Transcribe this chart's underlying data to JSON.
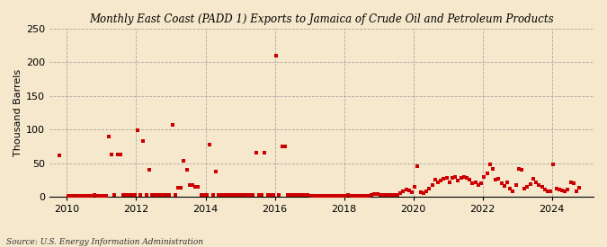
{
  "title": "Monthly East Coast (PADD 1) Exports to Jamaica of Crude Oil and Petroleum Products",
  "ylabel": "Thousand Barrels",
  "source": "Source: U.S. Energy Information Administration",
  "background_color": "#f5e8cc",
  "plot_bg_color": "#f5e8cc",
  "marker_color": "#cc0000",
  "marker_size": 5,
  "ylim": [
    0,
    250
  ],
  "yticks": [
    0,
    50,
    100,
    150,
    200,
    250
  ],
  "xlim_start": 2009.5,
  "xlim_end": 2025.2,
  "xticks": [
    2010,
    2012,
    2014,
    2016,
    2018,
    2020,
    2022,
    2024
  ],
  "data": [
    [
      2009,
      10,
      62
    ],
    [
      2010,
      1,
      1
    ],
    [
      2010,
      2,
      1
    ],
    [
      2010,
      3,
      1
    ],
    [
      2010,
      4,
      1
    ],
    [
      2010,
      5,
      1
    ],
    [
      2010,
      6,
      1
    ],
    [
      2010,
      7,
      1
    ],
    [
      2010,
      8,
      1
    ],
    [
      2010,
      9,
      1
    ],
    [
      2010,
      10,
      2
    ],
    [
      2010,
      11,
      1
    ],
    [
      2010,
      12,
      1
    ],
    [
      2011,
      1,
      1
    ],
    [
      2011,
      2,
      1
    ],
    [
      2011,
      3,
      90
    ],
    [
      2011,
      4,
      63
    ],
    [
      2011,
      5,
      2
    ],
    [
      2011,
      6,
      63
    ],
    [
      2011,
      7,
      63
    ],
    [
      2011,
      8,
      2
    ],
    [
      2011,
      9,
      2
    ],
    [
      2011,
      10,
      2
    ],
    [
      2011,
      11,
      2
    ],
    [
      2011,
      12,
      2
    ],
    [
      2012,
      1,
      99
    ],
    [
      2012,
      2,
      2
    ],
    [
      2012,
      3,
      83
    ],
    [
      2012,
      4,
      2
    ],
    [
      2012,
      5,
      40
    ],
    [
      2012,
      6,
      2
    ],
    [
      2012,
      7,
      2
    ],
    [
      2012,
      8,
      2
    ],
    [
      2012,
      9,
      2
    ],
    [
      2012,
      10,
      2
    ],
    [
      2012,
      11,
      2
    ],
    [
      2012,
      12,
      2
    ],
    [
      2013,
      1,
      107
    ],
    [
      2013,
      2,
      2
    ],
    [
      2013,
      3,
      13
    ],
    [
      2013,
      4,
      13
    ],
    [
      2013,
      5,
      54
    ],
    [
      2013,
      6,
      40
    ],
    [
      2013,
      7,
      18
    ],
    [
      2013,
      8,
      17
    ],
    [
      2013,
      9,
      14
    ],
    [
      2013,
      10,
      14
    ],
    [
      2013,
      11,
      2
    ],
    [
      2013,
      12,
      2
    ],
    [
      2014,
      1,
      2
    ],
    [
      2014,
      2,
      78
    ],
    [
      2014,
      3,
      2
    ],
    [
      2014,
      4,
      38
    ],
    [
      2014,
      5,
      2
    ],
    [
      2014,
      6,
      2
    ],
    [
      2014,
      7,
      2
    ],
    [
      2014,
      8,
      2
    ],
    [
      2014,
      9,
      2
    ],
    [
      2014,
      10,
      2
    ],
    [
      2014,
      11,
      2
    ],
    [
      2014,
      12,
      2
    ],
    [
      2015,
      1,
      2
    ],
    [
      2015,
      2,
      2
    ],
    [
      2015,
      3,
      2
    ],
    [
      2015,
      4,
      2
    ],
    [
      2015,
      5,
      2
    ],
    [
      2015,
      6,
      65
    ],
    [
      2015,
      7,
      2
    ],
    [
      2015,
      8,
      2
    ],
    [
      2015,
      9,
      66
    ],
    [
      2015,
      10,
      2
    ],
    [
      2015,
      11,
      2
    ],
    [
      2015,
      12,
      2
    ],
    [
      2016,
      1,
      210
    ],
    [
      2016,
      2,
      2
    ],
    [
      2016,
      3,
      75
    ],
    [
      2016,
      4,
      75
    ],
    [
      2016,
      5,
      2
    ],
    [
      2016,
      6,
      2
    ],
    [
      2016,
      7,
      2
    ],
    [
      2016,
      8,
      2
    ],
    [
      2016,
      9,
      2
    ],
    [
      2016,
      10,
      2
    ],
    [
      2016,
      11,
      2
    ],
    [
      2016,
      12,
      2
    ],
    [
      2017,
      1,
      1
    ],
    [
      2017,
      2,
      1
    ],
    [
      2017,
      3,
      1
    ],
    [
      2017,
      4,
      1
    ],
    [
      2017,
      5,
      1
    ],
    [
      2017,
      6,
      1
    ],
    [
      2017,
      7,
      1
    ],
    [
      2017,
      8,
      1
    ],
    [
      2017,
      9,
      1
    ],
    [
      2017,
      10,
      1
    ],
    [
      2017,
      11,
      1
    ],
    [
      2017,
      12,
      1
    ],
    [
      2018,
      1,
      1
    ],
    [
      2018,
      2,
      2
    ],
    [
      2018,
      3,
      1
    ],
    [
      2018,
      4,
      1
    ],
    [
      2018,
      5,
      1
    ],
    [
      2018,
      6,
      1
    ],
    [
      2018,
      7,
      1
    ],
    [
      2018,
      8,
      1
    ],
    [
      2018,
      9,
      1
    ],
    [
      2018,
      10,
      2
    ],
    [
      2018,
      11,
      4
    ],
    [
      2018,
      12,
      4
    ],
    [
      2019,
      1,
      2
    ],
    [
      2019,
      2,
      2
    ],
    [
      2019,
      3,
      2
    ],
    [
      2019,
      4,
      2
    ],
    [
      2019,
      5,
      2
    ],
    [
      2019,
      6,
      2
    ],
    [
      2019,
      7,
      3
    ],
    [
      2019,
      8,
      5
    ],
    [
      2019,
      9,
      8
    ],
    [
      2019,
      10,
      10
    ],
    [
      2019,
      11,
      9
    ],
    [
      2019,
      12,
      7
    ],
    [
      2020,
      1,
      15
    ],
    [
      2020,
      2,
      46
    ],
    [
      2020,
      3,
      6
    ],
    [
      2020,
      4,
      5
    ],
    [
      2020,
      5,
      8
    ],
    [
      2020,
      6,
      12
    ],
    [
      2020,
      7,
      17
    ],
    [
      2020,
      8,
      25
    ],
    [
      2020,
      9,
      22
    ],
    [
      2020,
      10,
      24
    ],
    [
      2020,
      11,
      27
    ],
    [
      2020,
      12,
      28
    ],
    [
      2021,
      1,
      22
    ],
    [
      2021,
      2,
      28
    ],
    [
      2021,
      3,
      30
    ],
    [
      2021,
      4,
      24
    ],
    [
      2021,
      5,
      28
    ],
    [
      2021,
      6,
      30
    ],
    [
      2021,
      7,
      28
    ],
    [
      2021,
      8,
      25
    ],
    [
      2021,
      9,
      20
    ],
    [
      2021,
      10,
      22
    ],
    [
      2021,
      11,
      18
    ],
    [
      2021,
      12,
      20
    ],
    [
      2022,
      1,
      30
    ],
    [
      2022,
      2,
      35
    ],
    [
      2022,
      3,
      48
    ],
    [
      2022,
      4,
      42
    ],
    [
      2022,
      5,
      25
    ],
    [
      2022,
      6,
      27
    ],
    [
      2022,
      7,
      20
    ],
    [
      2022,
      8,
      16
    ],
    [
      2022,
      9,
      22
    ],
    [
      2022,
      10,
      12
    ],
    [
      2022,
      11,
      8
    ],
    [
      2022,
      12,
      18
    ],
    [
      2023,
      1,
      42
    ],
    [
      2023,
      2,
      40
    ],
    [
      2023,
      3,
      12
    ],
    [
      2023,
      4,
      15
    ],
    [
      2023,
      5,
      19
    ],
    [
      2023,
      6,
      27
    ],
    [
      2023,
      7,
      22
    ],
    [
      2023,
      8,
      18
    ],
    [
      2023,
      9,
      15
    ],
    [
      2023,
      10,
      10
    ],
    [
      2023,
      11,
      8
    ],
    [
      2023,
      12,
      8
    ],
    [
      2024,
      1,
      48
    ],
    [
      2024,
      2,
      12
    ],
    [
      2024,
      3,
      10
    ],
    [
      2024,
      4,
      9
    ],
    [
      2024,
      5,
      8
    ],
    [
      2024,
      6,
      10
    ],
    [
      2024,
      7,
      22
    ],
    [
      2024,
      8,
      20
    ],
    [
      2024,
      9,
      8
    ],
    [
      2024,
      10,
      13
    ]
  ]
}
